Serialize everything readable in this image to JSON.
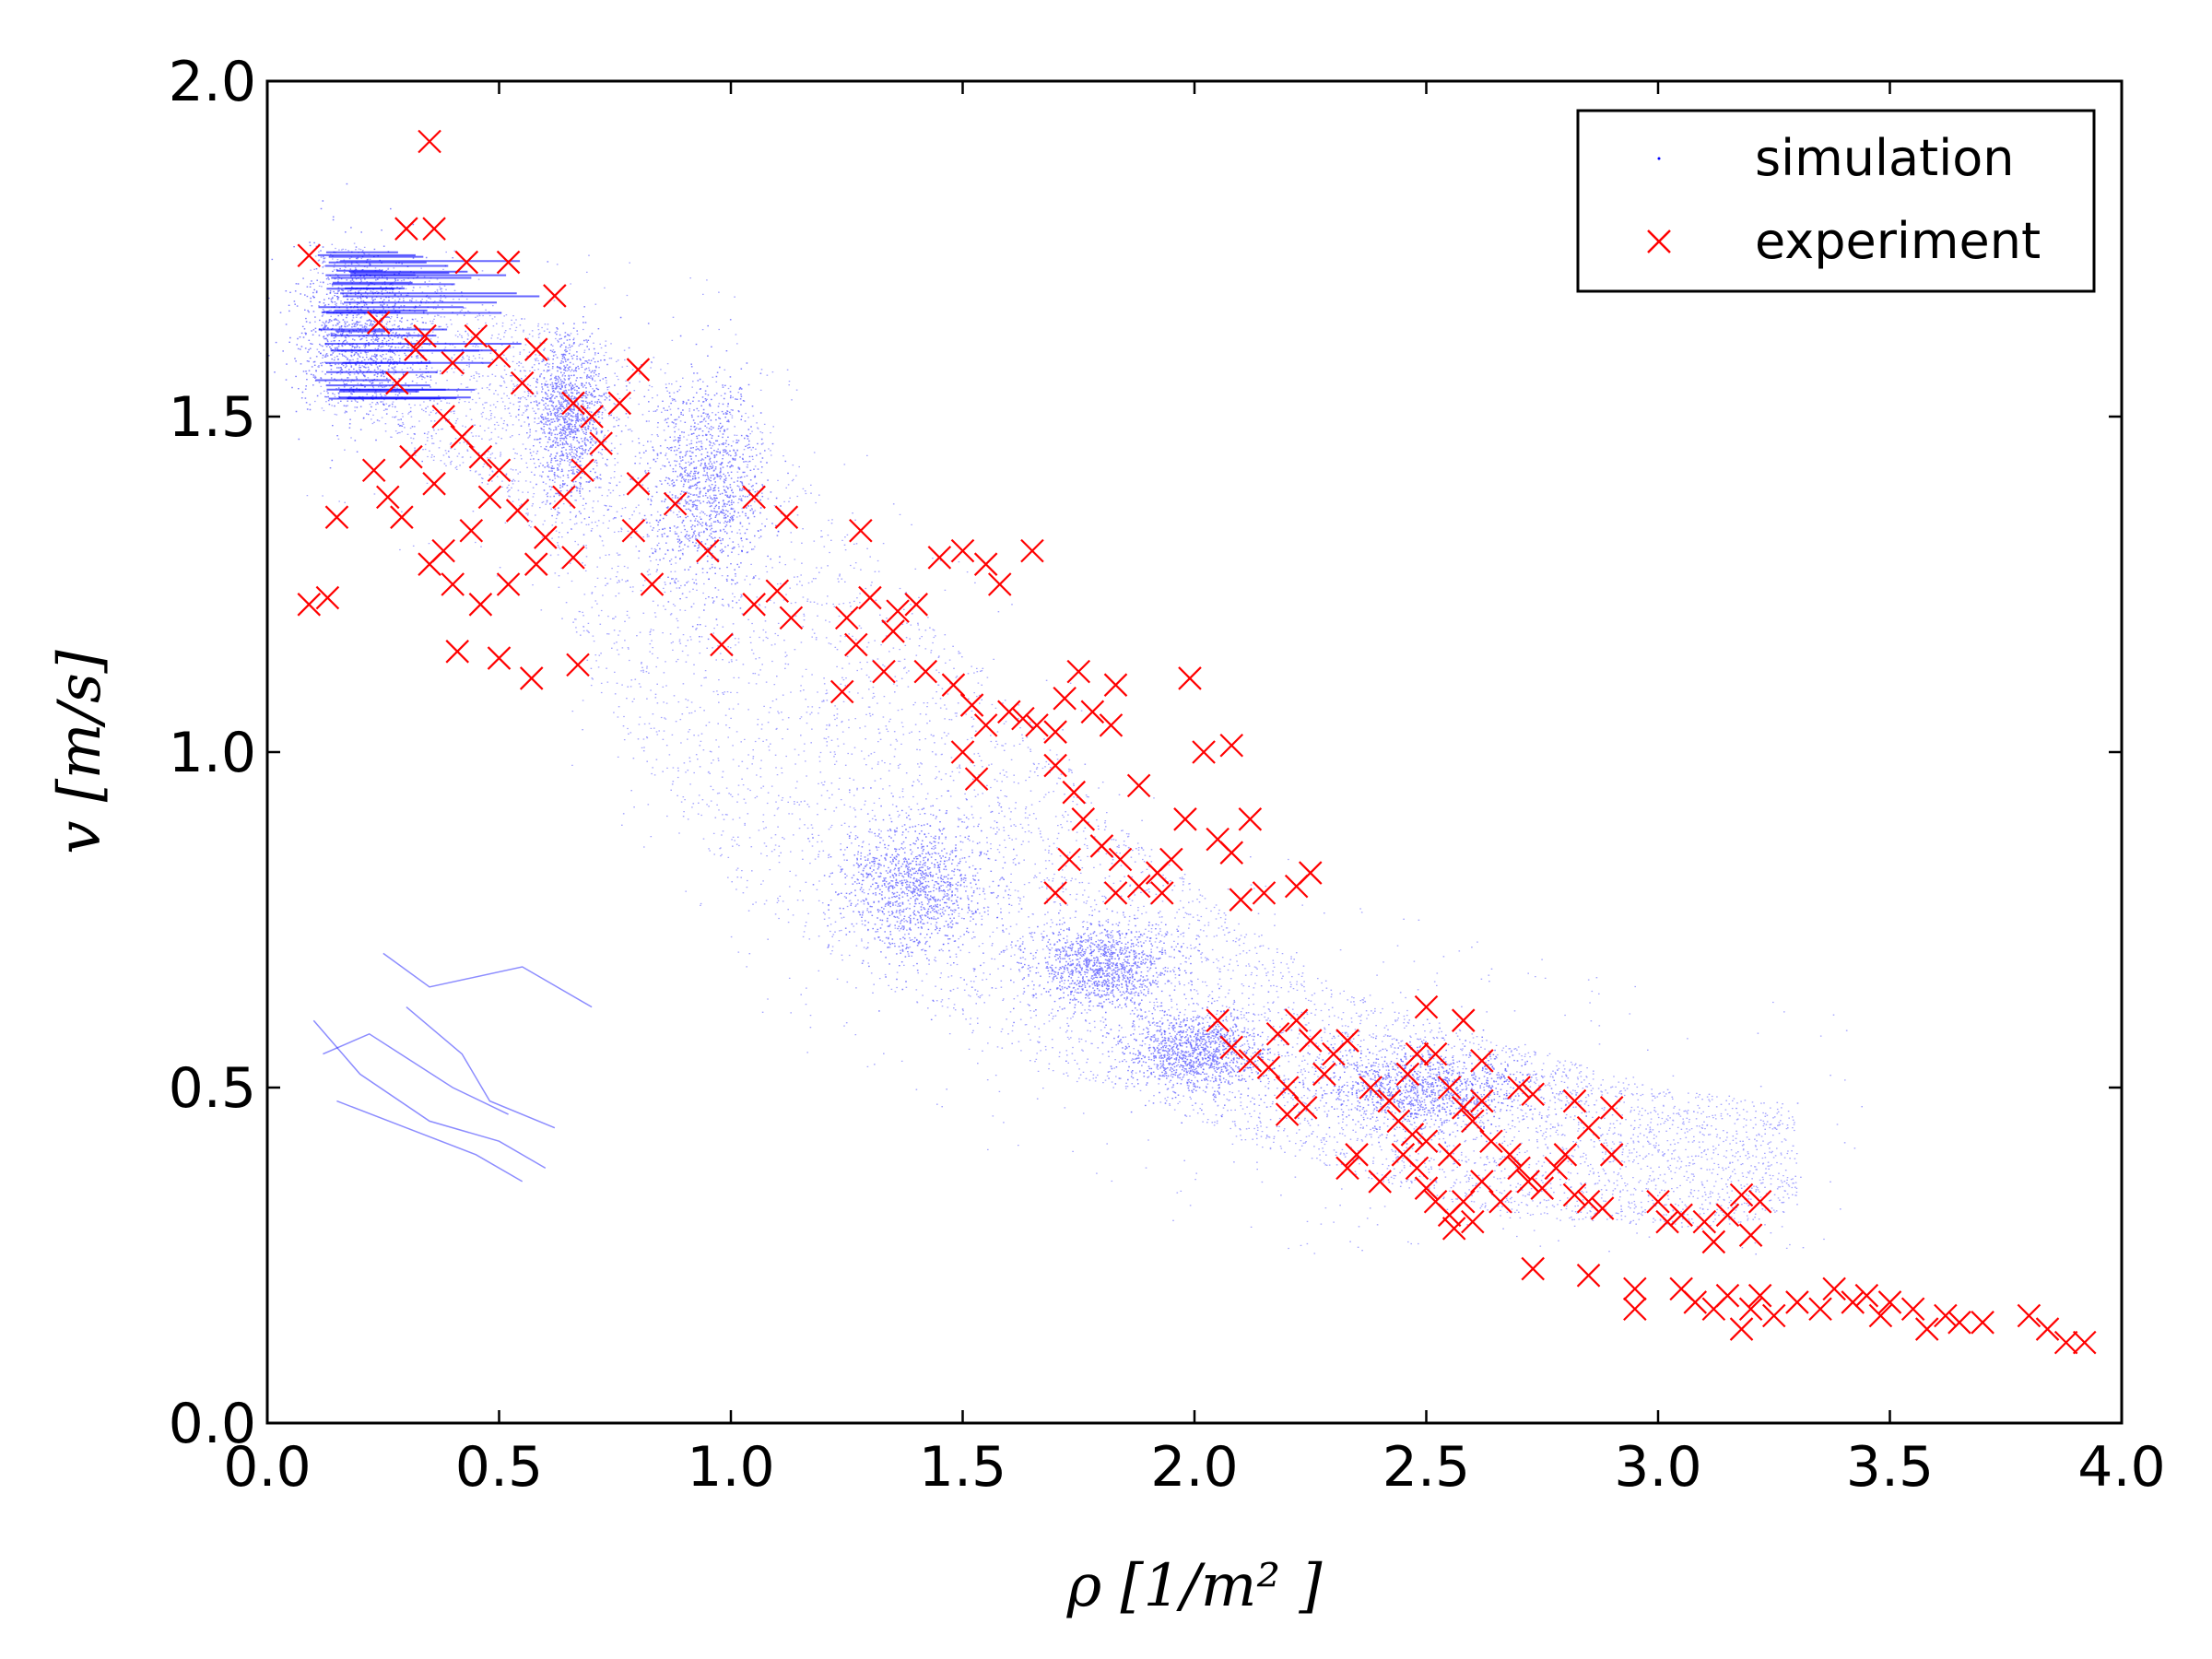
{
  "chart_data": {
    "type": "scatter",
    "xlabel": "ρ  [1/m² ]",
    "ylabel": "v  [m/s]",
    "xlim": [
      0.0,
      4.0
    ],
    "ylim": [
      0.0,
      2.0
    ],
    "xticks": [
      "0.0",
      "0.5",
      "1.0",
      "1.5",
      "2.0",
      "2.5",
      "3.0",
      "3.5",
      "4.0"
    ],
    "yticks": [
      "0.0",
      "0.5",
      "1.0",
      "1.5",
      "2.0"
    ],
    "legend": {
      "position": "upper-right",
      "entries": [
        "simulation",
        "experiment"
      ]
    },
    "series": [
      {
        "name": "simulation",
        "marker": "dot",
        "color": "#0000ff",
        "density_band": [
          [
            0.1,
            1.5,
            1.76
          ],
          [
            0.2,
            1.5,
            1.76
          ],
          [
            0.3,
            1.45,
            1.72
          ],
          [
            0.4,
            1.42,
            1.7
          ],
          [
            0.5,
            1.4,
            1.66
          ],
          [
            0.6,
            1.3,
            1.64
          ],
          [
            0.7,
            1.1,
            1.62
          ],
          [
            0.8,
            1.0,
            1.6
          ],
          [
            0.9,
            0.9,
            1.58
          ],
          [
            1.0,
            0.8,
            1.55
          ],
          [
            1.1,
            0.75,
            1.48
          ],
          [
            1.2,
            0.7,
            1.38
          ],
          [
            1.3,
            0.66,
            1.3
          ],
          [
            1.4,
            0.62,
            1.22
          ],
          [
            1.5,
            0.58,
            1.15
          ],
          [
            1.6,
            0.55,
            1.08
          ],
          [
            1.7,
            0.52,
            1.0
          ],
          [
            1.8,
            0.5,
            0.92
          ],
          [
            1.9,
            0.48,
            0.85
          ],
          [
            2.0,
            0.45,
            0.8
          ],
          [
            2.1,
            0.42,
            0.75
          ],
          [
            2.2,
            0.4,
            0.7
          ],
          [
            2.3,
            0.38,
            0.65
          ],
          [
            2.4,
            0.36,
            0.62
          ],
          [
            2.5,
            0.34,
            0.6
          ],
          [
            2.6,
            0.32,
            0.58
          ],
          [
            2.7,
            0.31,
            0.56
          ],
          [
            2.8,
            0.3,
            0.54
          ],
          [
            2.9,
            0.3,
            0.52
          ],
          [
            3.0,
            0.29,
            0.5
          ],
          [
            3.1,
            0.29,
            0.49
          ],
          [
            3.2,
            0.3,
            0.48
          ],
          [
            3.3,
            0.32,
            0.48
          ]
        ],
        "dense_clusters": [
          [
            0.2,
            1.62,
            0.14,
            0.12
          ],
          [
            0.65,
            1.5,
            0.08,
            0.12
          ],
          [
            0.95,
            1.4,
            0.12,
            0.15
          ],
          [
            1.4,
            0.8,
            0.15,
            0.1
          ],
          [
            1.8,
            0.68,
            0.15,
            0.06
          ],
          [
            2.0,
            0.55,
            0.15,
            0.06
          ],
          [
            2.5,
            0.5,
            0.25,
            0.06
          ]
        ],
        "trails": [
          [
            [
              0.1,
              0.6
            ],
            [
              0.2,
              0.52
            ],
            [
              0.35,
              0.45
            ],
            [
              0.5,
              0.42
            ],
            [
              0.6,
              0.38
            ]
          ],
          [
            [
              0.15,
              0.48
            ],
            [
              0.3,
              0.44
            ],
            [
              0.45,
              0.4
            ],
            [
              0.55,
              0.36
            ]
          ],
          [
            [
              0.25,
              0.7
            ],
            [
              0.35,
              0.65
            ],
            [
              0.55,
              0.68
            ],
            [
              0.7,
              0.62
            ]
          ],
          [
            [
              0.12,
              0.55
            ],
            [
              0.22,
              0.58
            ],
            [
              0.4,
              0.5
            ],
            [
              0.52,
              0.46
            ]
          ],
          [
            [
              0.3,
              0.62
            ],
            [
              0.42,
              0.55
            ],
            [
              0.48,
              0.48
            ],
            [
              0.62,
              0.44
            ]
          ]
        ]
      },
      {
        "name": "experiment",
        "marker": "x",
        "color": "#ff0000",
        "points": [
          [
            0.35,
            1.91
          ],
          [
            0.09,
            1.74
          ],
          [
            0.24,
            1.64
          ],
          [
            0.3,
            1.78
          ],
          [
            0.36,
            1.78
          ],
          [
            0.43,
            1.73
          ],
          [
            0.52,
            1.73
          ],
          [
            0.34,
            1.62
          ],
          [
            0.4,
            1.58
          ],
          [
            0.28,
            1.55
          ],
          [
            0.32,
            1.6
          ],
          [
            0.45,
            1.62
          ],
          [
            0.5,
            1.59
          ],
          [
            0.55,
            1.55
          ],
          [
            0.58,
            1.6
          ],
          [
            0.62,
            1.68
          ],
          [
            0.66,
            1.52
          ],
          [
            0.7,
            1.5
          ],
          [
            0.38,
            1.5
          ],
          [
            0.42,
            1.47
          ],
          [
            0.46,
            1.44
          ],
          [
            0.5,
            1.42
          ],
          [
            0.36,
            1.4
          ],
          [
            0.31,
            1.44
          ],
          [
            0.48,
            1.38
          ],
          [
            0.54,
            1.36
          ],
          [
            0.44,
            1.33
          ],
          [
            0.38,
            1.3
          ],
          [
            0.29,
            1.35
          ],
          [
            0.26,
            1.38
          ],
          [
            0.23,
            1.42
          ],
          [
            0.15,
            1.35
          ],
          [
            0.35,
            1.28
          ],
          [
            0.4,
            1.25
          ],
          [
            0.46,
            1.22
          ],
          [
            0.52,
            1.25
          ],
          [
            0.58,
            1.28
          ],
          [
            0.6,
            1.32
          ],
          [
            0.64,
            1.38
          ],
          [
            0.68,
            1.42
          ],
          [
            0.72,
            1.46
          ],
          [
            0.76,
            1.52
          ],
          [
            0.8,
            1.57
          ],
          [
            0.66,
            1.29
          ],
          [
            0.09,
            1.22
          ],
          [
            0.13,
            1.23
          ],
          [
            0.41,
            1.15
          ],
          [
            0.5,
            1.14
          ],
          [
            0.57,
            1.11
          ],
          [
            0.67,
            1.13
          ],
          [
            0.8,
            1.4
          ],
          [
            0.88,
            1.37
          ],
          [
            0.79,
            1.33
          ],
          [
            0.83,
            1.25
          ],
          [
            0.95,
            1.3
          ],
          [
            0.98,
            1.16
          ],
          [
            1.05,
            1.22
          ],
          [
            1.1,
            1.24
          ],
          [
            1.13,
            1.2
          ],
          [
            1.05,
            1.38
          ],
          [
            1.12,
            1.35
          ],
          [
            1.25,
            1.2
          ],
          [
            1.3,
            1.23
          ],
          [
            1.35,
            1.18
          ],
          [
            1.28,
            1.33
          ],
          [
            1.33,
            1.12
          ],
          [
            1.4,
            1.22
          ],
          [
            1.42,
            1.12
          ],
          [
            1.24,
            1.09
          ],
          [
            1.27,
            1.16
          ],
          [
            1.36,
            1.21
          ],
          [
            1.45,
            1.29
          ],
          [
            1.5,
            1.3
          ],
          [
            1.55,
            1.28
          ],
          [
            1.58,
            1.25
          ],
          [
            1.48,
            1.1
          ],
          [
            1.52,
            1.07
          ],
          [
            1.55,
            1.04
          ],
          [
            1.5,
            1.0
          ],
          [
            1.53,
            0.96
          ],
          [
            1.6,
            1.06
          ],
          [
            1.63,
            1.05
          ],
          [
            1.66,
            1.04
          ],
          [
            1.7,
            1.03
          ],
          [
            1.65,
            1.3
          ],
          [
            1.72,
            1.08
          ],
          [
            1.75,
            1.12
          ],
          [
            1.78,
            1.06
          ],
          [
            1.83,
            1.1
          ],
          [
            1.82,
            1.04
          ],
          [
            1.7,
            0.98
          ],
          [
            1.74,
            0.94
          ],
          [
            1.76,
            0.9
          ],
          [
            1.8,
            0.86
          ],
          [
            1.84,
            0.84
          ],
          [
            1.88,
            0.8
          ],
          [
            1.92,
            0.82
          ],
          [
            1.95,
            0.84
          ],
          [
            1.98,
            0.9
          ],
          [
            2.02,
            1.0
          ],
          [
            2.08,
            1.01
          ],
          [
            2.05,
            0.87
          ],
          [
            2.08,
            0.85
          ],
          [
            2.12,
            0.9
          ],
          [
            1.99,
            1.11
          ],
          [
            1.88,
            0.95
          ],
          [
            1.93,
            0.79
          ],
          [
            1.83,
            0.79
          ],
          [
            1.73,
            0.84
          ],
          [
            1.7,
            0.79
          ],
          [
            2.1,
            0.78
          ],
          [
            2.15,
            0.79
          ],
          [
            2.22,
            0.8
          ],
          [
            2.25,
            0.82
          ],
          [
            2.18,
            0.58
          ],
          [
            2.05,
            0.6
          ],
          [
            2.08,
            0.56
          ],
          [
            2.12,
            0.54
          ],
          [
            2.16,
            0.53
          ],
          [
            2.2,
            0.5
          ],
          [
            2.22,
            0.6
          ],
          [
            2.25,
            0.57
          ],
          [
            2.3,
            0.55
          ],
          [
            2.33,
            0.57
          ],
          [
            2.28,
            0.52
          ],
          [
            2.24,
            0.47
          ],
          [
            2.2,
            0.46
          ],
          [
            2.38,
            0.5
          ],
          [
            2.42,
            0.48
          ],
          [
            2.44,
            0.45
          ],
          [
            2.46,
            0.52
          ],
          [
            2.48,
            0.55
          ],
          [
            2.5,
            0.62
          ],
          [
            2.52,
            0.55
          ],
          [
            2.55,
            0.5
          ],
          [
            2.58,
            0.47
          ],
          [
            2.6,
            0.45
          ],
          [
            2.62,
            0.48
          ],
          [
            2.64,
            0.42
          ],
          [
            2.68,
            0.4
          ],
          [
            2.7,
            0.38
          ],
          [
            2.72,
            0.36
          ],
          [
            2.75,
            0.35
          ],
          [
            2.78,
            0.38
          ],
          [
            2.8,
            0.4
          ],
          [
            2.82,
            0.34
          ],
          [
            2.85,
            0.33
          ],
          [
            2.88,
            0.32
          ],
          [
            2.9,
            0.4
          ],
          [
            2.45,
            0.4
          ],
          [
            2.48,
            0.38
          ],
          [
            2.5,
            0.35
          ],
          [
            2.52,
            0.33
          ],
          [
            2.55,
            0.31
          ],
          [
            2.58,
            0.33
          ],
          [
            2.6,
            0.3
          ],
          [
            2.56,
            0.29
          ],
          [
            2.62,
            0.36
          ],
          [
            2.66,
            0.33
          ],
          [
            2.55,
            0.4
          ],
          [
            2.5,
            0.42
          ],
          [
            2.47,
            0.43
          ],
          [
            2.35,
            0.4
          ],
          [
            2.4,
            0.36
          ],
          [
            2.33,
            0.38
          ],
          [
            2.7,
            0.5
          ],
          [
            2.73,
            0.49
          ],
          [
            2.62,
            0.54
          ],
          [
            2.58,
            0.6
          ],
          [
            2.82,
            0.48
          ],
          [
            2.85,
            0.44
          ],
          [
            2.9,
            0.47
          ],
          [
            2.73,
            0.23
          ],
          [
            2.85,
            0.22
          ],
          [
            2.95,
            0.2
          ],
          [
            2.95,
            0.17
          ],
          [
            3.0,
            0.33
          ],
          [
            3.02,
            0.3
          ],
          [
            3.05,
            0.31
          ],
          [
            3.1,
            0.3
          ],
          [
            3.12,
            0.27
          ],
          [
            3.15,
            0.31
          ],
          [
            3.18,
            0.34
          ],
          [
            3.2,
            0.28
          ],
          [
            3.22,
            0.33
          ],
          [
            3.05,
            0.2
          ],
          [
            3.08,
            0.18
          ],
          [
            3.12,
            0.17
          ],
          [
            3.15,
            0.19
          ],
          [
            3.18,
            0.14
          ],
          [
            3.2,
            0.17
          ],
          [
            3.22,
            0.19
          ],
          [
            3.25,
            0.16
          ],
          [
            3.3,
            0.18
          ],
          [
            3.35,
            0.17
          ],
          [
            3.38,
            0.2
          ],
          [
            3.42,
            0.18
          ],
          [
            3.45,
            0.19
          ],
          [
            3.48,
            0.16
          ],
          [
            3.5,
            0.18
          ],
          [
            3.55,
            0.17
          ],
          [
            3.58,
            0.14
          ],
          [
            3.62,
            0.16
          ],
          [
            3.65,
            0.15
          ],
          [
            3.7,
            0.15
          ],
          [
            3.8,
            0.16
          ],
          [
            3.84,
            0.14
          ],
          [
            3.88,
            0.12
          ],
          [
            3.92,
            0.12
          ]
        ]
      }
    ]
  }
}
